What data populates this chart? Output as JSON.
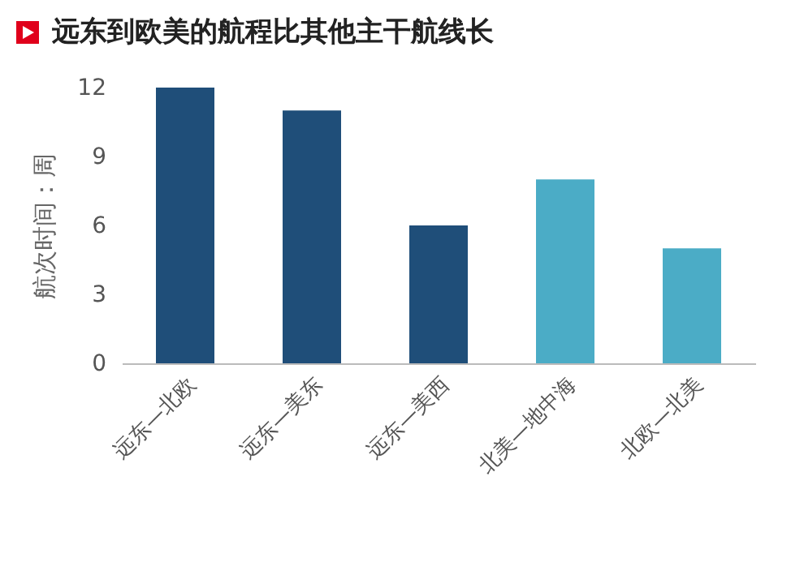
{
  "chart_data": {
    "type": "bar",
    "title": "远东到欧美的航程比其他主干航线长",
    "ylabel": "航次时间：周",
    "categories": [
      "远东—北欧",
      "远东—美东",
      "远东—美西",
      "北美—地中海",
      "北欧—北美"
    ],
    "values": [
      12,
      11,
      6,
      8,
      5
    ],
    "colors": [
      "#1f4e79",
      "#1f4e79",
      "#1f4e79",
      "#4bacc6",
      "#4bacc6"
    ],
    "ylim": [
      0,
      12
    ],
    "yticks": [
      0,
      3,
      6,
      9,
      12
    ],
    "grid": false
  }
}
